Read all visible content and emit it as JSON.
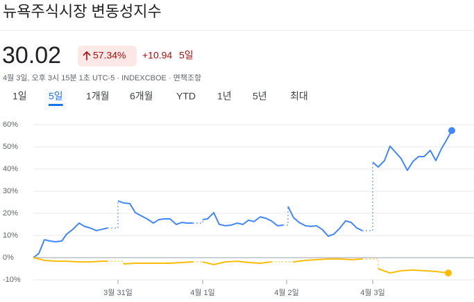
{
  "header": {
    "title": "뉴욕주식시장 변동성지수",
    "price": "30.02",
    "change_percent": "57.34%",
    "change_value": "+10.94",
    "period": "5일",
    "meta": "4월 3일, 오후 3시 15분 1초 UTC-5 · INDEXCBOE · 면책조항"
  },
  "tabs": [
    "1일",
    "5일",
    "1개월",
    "6개월",
    "YTD",
    "1년",
    "5년",
    "최대"
  ],
  "selected_tab": 1,
  "chart_data": {
    "type": "line",
    "xlim": [
      0,
      60.5
    ],
    "xticks": [
      {
        "value": 12.2,
        "label": "3월 31일"
      },
      {
        "value": 24.4,
        "label": "4월 1일"
      },
      {
        "value": 36.5,
        "label": "4월 2일"
      },
      {
        "value": 48.9,
        "label": "4월 3일"
      }
    ],
    "ylim": [
      -10,
      60
    ],
    "yticks": [
      {
        "value": -10,
        "label": "-10%"
      },
      {
        "value": 0,
        "label": "0%"
      },
      {
        "value": 10,
        "label": "10%"
      },
      {
        "value": 20,
        "label": "20%"
      },
      {
        "value": 30,
        "label": "30%"
      },
      {
        "value": 40,
        "label": "40%"
      },
      {
        "value": 50,
        "label": "50%"
      },
      {
        "value": 60,
        "label": "60%"
      }
    ],
    "grid": true,
    "series": [
      {
        "color": "#4285f4",
        "x": [
          0,
          0.8,
          1.6,
          2.4,
          3.2,
          4.1,
          4.8,
          5.7,
          6.6,
          7.4,
          8.2,
          9.1,
          9.9,
          10.7,
          null,
          12.2,
          13,
          13.9,
          14.7,
          15.6,
          16.4,
          17.3,
          18.1,
          18.9,
          19.7,
          20.6,
          21.4,
          22.2,
          23,
          null,
          24.4,
          25.1,
          26,
          26.8,
          27.7,
          28.5,
          29.4,
          30.2,
          31,
          31.8,
          32.7,
          33.5,
          34.3,
          35.2,
          36,
          null,
          36.7,
          37.5,
          38.3,
          39.2,
          40,
          40.8,
          41.6,
          42.5,
          43.3,
          44.1,
          45,
          45.8,
          46.6,
          47.4,
          null,
          48.9,
          49.7,
          50.6,
          51.4,
          52.2,
          53,
          53.9,
          54.7,
          55.5,
          56.3,
          57.2,
          58,
          58.8,
          59.5,
          60.3
        ],
        "values": [
          0,
          1.9,
          8.1,
          7.5,
          7.2,
          7.5,
          10.6,
          12.8,
          15.6,
          14.1,
          13.4,
          12.2,
          12.8,
          13.4,
          null,
          25.6,
          24.7,
          24.4,
          20.3,
          18.8,
          17.5,
          15.6,
          17.2,
          17.5,
          17.5,
          15,
          15.9,
          15.6,
          15.6,
          null,
          17.2,
          17.5,
          20.3,
          15,
          14.4,
          14.7,
          15.6,
          15,
          16.9,
          16.3,
          18.4,
          17.8,
          16.6,
          14.4,
          14.7,
          null,
          23.1,
          18.1,
          15.9,
          14.4,
          14.1,
          14.4,
          12.8,
          9.7,
          10.6,
          13.1,
          16.6,
          15.9,
          13.4,
          12.2,
          null,
          43.1,
          40.9,
          43.8,
          50.3,
          47.5,
          44.7,
          39.4,
          43.4,
          45.6,
          45.6,
          48.4,
          43.8,
          49.1,
          52.8,
          57.34
        ]
      },
      {
        "color": "#fbbc04",
        "x": [
          0,
          1.6,
          3.2,
          4.8,
          6.6,
          8.2,
          9.9,
          10.7,
          null,
          13,
          14.7,
          16.4,
          18.1,
          19.7,
          21.4,
          23,
          null,
          24.4,
          26,
          27.7,
          29.4,
          31,
          32.7,
          34.3,
          null,
          37.5,
          39.2,
          40.8,
          42.5,
          44.1,
          45.8,
          47.4,
          null,
          49.7,
          51.4,
          53,
          54.7,
          56.3,
          58,
          59.8
        ],
        "values": [
          0,
          -1.2,
          -1.6,
          -1.6,
          -1.9,
          -1.9,
          -1.6,
          -1.6,
          null,
          -2.8,
          -2.5,
          -2.5,
          -2.5,
          -2.5,
          -2.2,
          -1.9,
          null,
          -1.9,
          -3.1,
          -1.9,
          -1.6,
          -2.2,
          -2.5,
          -1.9,
          null,
          -1.9,
          -1.2,
          -0.9,
          -0.6,
          -0.6,
          -0.9,
          -0.6,
          null,
          -5,
          -6.9,
          -5.9,
          -5.6,
          -5.9,
          -6.2,
          -6.9
        ]
      }
    ]
  }
}
